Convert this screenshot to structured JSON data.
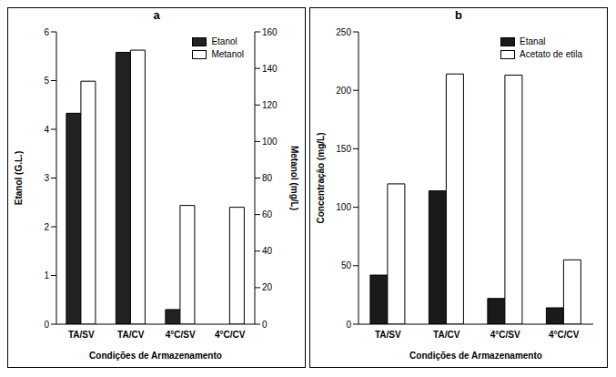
{
  "chart_data": [
    {
      "type": "bar",
      "title": "a",
      "categories": [
        "TA/SV",
        "TA/CV",
        "4°C/SV",
        "4°C/CV"
      ],
      "xlabel": "Condições de Armazenamento",
      "ylabel": "Etanol (G.L.)",
      "y2label": "Metanol (mg/L)",
      "ylim": [
        0,
        6
      ],
      "yticks": [
        0,
        1,
        2,
        3,
        4,
        5,
        6
      ],
      "y2lim": [
        0,
        160
      ],
      "y2ticks": [
        0,
        20,
        40,
        60,
        80,
        100,
        120,
        140,
        160
      ],
      "grid": false,
      "legend": "upper right",
      "series": [
        {
          "name": "Etanol",
          "color": "#222222",
          "values": [
            4.33,
            5.58,
            0.3,
            0
          ]
        },
        {
          "name": "Metanol",
          "color": "#ffffff",
          "axis": "y2",
          "values": [
            133,
            150,
            65,
            64
          ]
        }
      ]
    },
    {
      "type": "bar",
      "title": "b",
      "categories": [
        "TA/SV",
        "TA/CV",
        "4°C/SV",
        "4°C/CV"
      ],
      "xlabel": "Condições de Armazenamento",
      "ylabel": "Concentração (mg/L)",
      "ylim": [
        0,
        250
      ],
      "yticks": [
        0,
        50,
        100,
        150,
        200,
        250
      ],
      "grid": false,
      "legend": "upper right",
      "series": [
        {
          "name": "Etanal",
          "color": "#1a1a1a",
          "values": [
            42,
            114,
            22,
            14
          ]
        },
        {
          "name": "Acetato de etila",
          "color": "#ffffff",
          "values": [
            120,
            214,
            213,
            55
          ]
        }
      ]
    }
  ]
}
